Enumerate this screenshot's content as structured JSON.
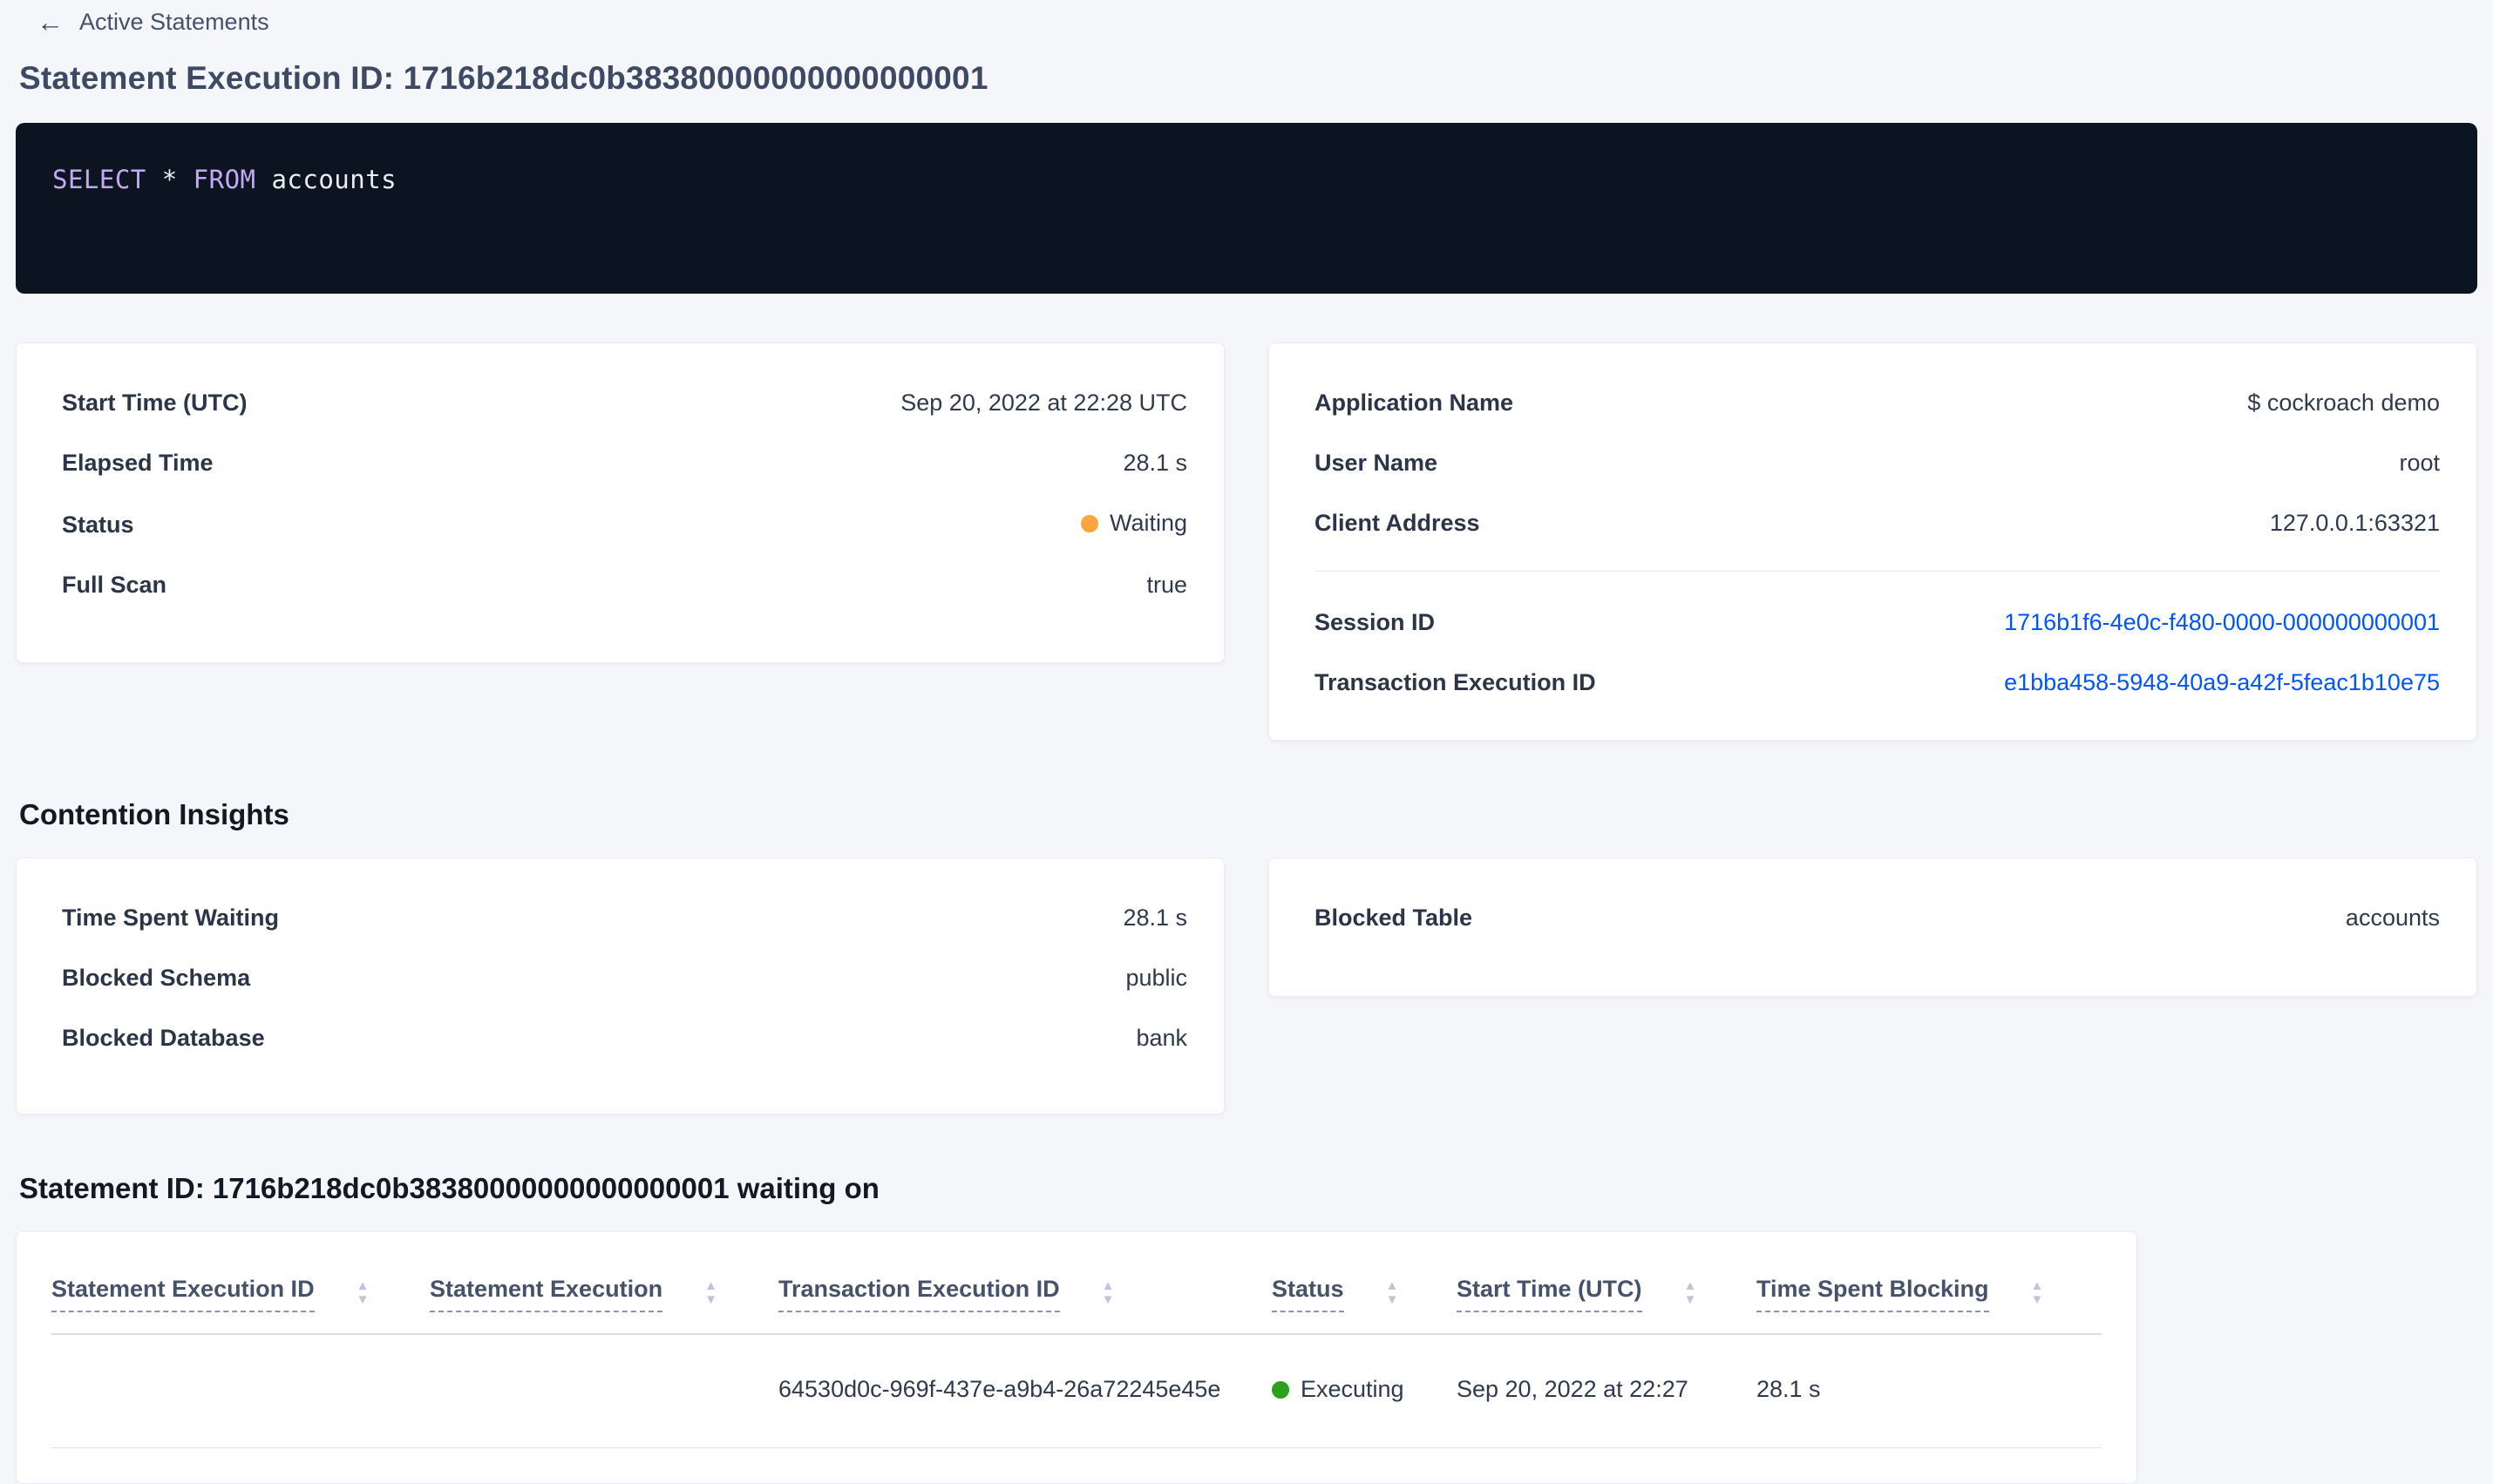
{
  "header": {
    "back_label": "Active Statements",
    "title": "Statement Execution ID: 1716b218dc0b38380000000000000001"
  },
  "glyphs": {
    "back_arrow": "←",
    "sort_up": "▲",
    "sort_down": "▼"
  },
  "colors": {
    "page_background": "#f4f6fa",
    "sql_box_background": "#0d1421",
    "sql_keyword": "#c5a8f3",
    "sql_text": "#e9edf4",
    "link": "#0055ff",
    "status_waiting_dot": "#ffa53b",
    "status_executing_dot": "#2ca01c"
  },
  "sql": {
    "kw_select": "SELECT",
    "star": " * ",
    "kw_from": "FROM",
    "table_name": " accounts"
  },
  "overview_card": {
    "rows": [
      {
        "label": "Start Time (UTC)",
        "value": "Sep 20, 2022 at 22:28 UTC"
      },
      {
        "label": "Elapsed Time",
        "value": "28.1 s"
      },
      {
        "label": "Status",
        "value": "Waiting"
      },
      {
        "label": "Full Scan",
        "value": "true"
      }
    ]
  },
  "session_card": {
    "rows": [
      {
        "label": "Application Name",
        "value": "$ cockroach demo"
      },
      {
        "label": "User Name",
        "value": "root"
      },
      {
        "label": "Client Address",
        "value": "127.0.0.1:63321"
      }
    ],
    "links": [
      {
        "label": "Session ID",
        "value": "1716b1f6-4e0c-f480-0000-000000000001"
      },
      {
        "label": "Transaction Execution ID",
        "value": "e1bba458-5948-40a9-a42f-5feac1b10e75"
      }
    ]
  },
  "contention": {
    "heading": "Contention Insights",
    "left_rows": [
      {
        "label": "Time Spent Waiting",
        "value": "28.1 s"
      },
      {
        "label": "Blocked Schema",
        "value": "public"
      },
      {
        "label": "Blocked Database",
        "value": "bank"
      }
    ],
    "right_rows": [
      {
        "label": "Blocked Table",
        "value": "accounts"
      }
    ]
  },
  "waiting_section": {
    "heading": "Statement ID: 1716b218dc0b38380000000000000001 waiting on",
    "columns": [
      "Statement Execution ID",
      "Statement Execution",
      "Transaction Execution ID",
      "Status",
      "Start Time (UTC)",
      "Time Spent Blocking"
    ],
    "rows": [
      {
        "statement_execution_id": "",
        "statement_execution": "",
        "transaction_execution_id": "64530d0c-969f-437e-a9b4-26a72245e45e",
        "status": "Executing",
        "start_time": "Sep 20, 2022 at 22:27",
        "time_spent_blocking": "28.1 s"
      }
    ]
  }
}
